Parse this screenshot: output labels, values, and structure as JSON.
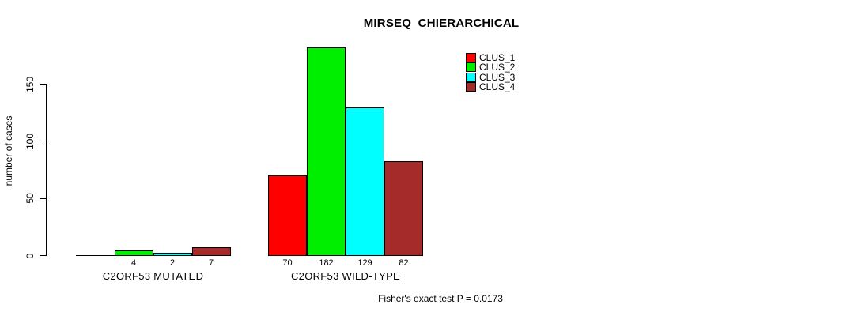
{
  "chart_data": {
    "type": "bar",
    "title": "MIRSEQ_CHIERARCHICAL",
    "xlabel": "",
    "ylabel": "number of cases",
    "categories": [
      "C2ORF53 MUTATED",
      "C2ORF53 WILD-TYPE"
    ],
    "series": [
      {
        "name": "CLUS_1",
        "color": "#FF0000",
        "values": [
          0,
          70
        ]
      },
      {
        "name": "CLUS_2",
        "color": "#00EE00",
        "values": [
          4,
          182
        ]
      },
      {
        "name": "CLUS_3",
        "color": "#00FFFF",
        "values": [
          2,
          129
        ]
      },
      {
        "name": "CLUS_4",
        "color": "#A52A2A",
        "values": [
          7,
          82
        ]
      }
    ],
    "bar_value_labels": [
      [
        "",
        "4",
        "2",
        "7"
      ],
      [
        "70",
        "182",
        "129",
        "82"
      ]
    ],
    "yticks": [
      0,
      50,
      100,
      150
    ],
    "ylim": [
      0,
      182
    ],
    "grid": false,
    "legend_position": "top-right",
    "annotation": "Fisher's exact test P = 0.0173"
  }
}
